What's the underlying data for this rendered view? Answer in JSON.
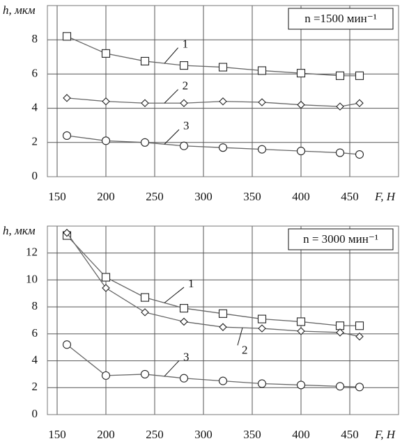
{
  "chart_data": [
    {
      "type": "line",
      "y_label": "h, мкм",
      "x_label": "F, Н",
      "annotation": "n =1500 мин⁻¹",
      "x": [
        160,
        200,
        240,
        280,
        320,
        360,
        400,
        440,
        460
      ],
      "series": [
        {
          "name": "1",
          "color": "#666666",
          "marker": "square",
          "values": [
            8.2,
            7.2,
            6.75,
            6.5,
            6.4,
            6.2,
            6.05,
            5.9,
            5.9
          ]
        },
        {
          "name": "2",
          "color": "#666666",
          "marker": "diamond",
          "values": [
            4.6,
            4.4,
            4.3,
            4.3,
            4.4,
            4.35,
            4.2,
            4.1,
            4.3
          ]
        },
        {
          "name": "3",
          "color": "#666666",
          "marker": "circle",
          "values": [
            2.4,
            2.1,
            2.0,
            1.8,
            1.7,
            1.6,
            1.5,
            1.4,
            1.3
          ]
        }
      ],
      "xlim": [
        140,
        500
      ],
      "xticks": [
        150,
        200,
        250,
        300,
        350,
        400,
        450
      ],
      "ylim": [
        0,
        10
      ],
      "yticks": [
        0,
        2,
        4,
        6,
        8
      ],
      "grid": true
    },
    {
      "type": "line",
      "y_label": "h, мкм",
      "x_label": "F, Н",
      "annotation": "n = 3000 мин⁻¹",
      "x": [
        160,
        200,
        240,
        280,
        320,
        360,
        400,
        440,
        460
      ],
      "series": [
        {
          "name": "1",
          "color": "#666666",
          "marker": "square",
          "values": [
            13.3,
            10.2,
            8.7,
            7.9,
            7.5,
            7.1,
            6.9,
            6.6,
            6.6
          ]
        },
        {
          "name": "2",
          "color": "#666666",
          "marker": "diamond",
          "values": [
            13.5,
            9.4,
            7.6,
            6.9,
            6.5,
            6.4,
            6.2,
            6.1,
            5.8
          ]
        },
        {
          "name": "3",
          "color": "#666666",
          "marker": "circle",
          "values": [
            5.2,
            2.9,
            3.0,
            2.7,
            2.5,
            2.3,
            2.2,
            2.1,
            2.05
          ]
        }
      ],
      "xlim": [
        140,
        500
      ],
      "xticks": [
        150,
        200,
        250,
        300,
        350,
        400,
        450
      ],
      "ylim": [
        0,
        14
      ],
      "yticks": [
        0,
        2,
        4,
        6,
        8,
        10,
        12
      ],
      "grid": true
    }
  ]
}
